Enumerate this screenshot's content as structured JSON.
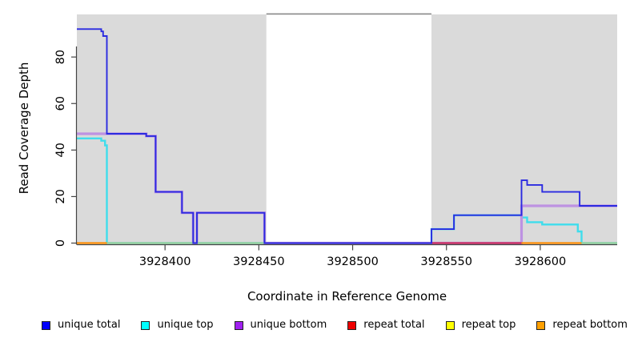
{
  "figure": {
    "x_axis_title": "Coordinate in Reference Genome",
    "y_axis_title": "Read Coverage Depth"
  },
  "legend": {
    "items": [
      {
        "name": "unique-total",
        "label": "unique total",
        "color": "#0000FF"
      },
      {
        "name": "unique-top",
        "label": "unique top",
        "color": "#00FFFF"
      },
      {
        "name": "unique-bottom",
        "label": "unique bottom",
        "color": "#A020F0"
      },
      {
        "name": "repeat-total",
        "label": "repeat total",
        "color": "#EE0000"
      },
      {
        "name": "repeat-top",
        "label": "repeat top",
        "color": "#FFFF00"
      },
      {
        "name": "repeat-bottom",
        "label": "repeat bottom",
        "color": "#FFA000"
      }
    ]
  },
  "chart_data": {
    "type": "line",
    "title": "",
    "xlabel": "Coordinate in Reference Genome",
    "ylabel": "Read Coverage Depth",
    "xlim": [
      3928353,
      3928641
    ],
    "ylim": [
      0,
      99
    ],
    "x_ticks": [
      3928400,
      3928450,
      3928500,
      3928550,
      3928600
    ],
    "y_ticks": [
      0,
      20,
      40,
      60,
      80
    ],
    "grid": false,
    "legend_position": "bottom",
    "background_color": "#FFFFFF",
    "shaded_regions": [
      {
        "name": "masked-region-left",
        "x0": 3928353,
        "x1": 3928454,
        "color": "#DADADA"
      },
      {
        "name": "masked-region-right",
        "x0": 3928542,
        "x1": 3928641,
        "color": "#DADADA"
      }
    ],
    "gap_marker": {
      "name": "gap-top-border",
      "x0": 3928454,
      "x1": 3928542,
      "y": 98.5,
      "color": "#888888"
    },
    "series": [
      {
        "name": "unique top",
        "color": "#3FDDEC",
        "width": 2.4,
        "points": [
          [
            3928353,
            45
          ],
          [
            3928366,
            45
          ],
          [
            3928366,
            44
          ],
          [
            3928368,
            44
          ],
          [
            3928368,
            42
          ],
          [
            3928369,
            42
          ],
          [
            3928369,
            0
          ],
          [
            3928542,
            0
          ],
          [
            3928542,
            6
          ],
          [
            3928554,
            6
          ],
          [
            3928554,
            12
          ],
          [
            3928590,
            12
          ],
          [
            3928590,
            11
          ],
          [
            3928593,
            11
          ],
          [
            3928593,
            9
          ],
          [
            3928601,
            9
          ],
          [
            3928601,
            8
          ],
          [
            3928620,
            8
          ],
          [
            3928620,
            5
          ],
          [
            3928622,
            5
          ],
          [
            3928622,
            0
          ],
          [
            3928641,
            0
          ]
        ]
      },
      {
        "name": "unique bottom",
        "color": "#BD92E2",
        "width": 3.2,
        "points": [
          [
            3928353,
            47
          ],
          [
            3928390,
            47
          ],
          [
            3928390,
            46
          ],
          [
            3928395,
            46
          ],
          [
            3928395,
            22
          ],
          [
            3928409,
            22
          ],
          [
            3928409,
            13
          ],
          [
            3928415,
            13
          ],
          [
            3928415,
            0
          ],
          [
            3928417,
            0
          ],
          [
            3928417,
            13
          ],
          [
            3928453,
            13
          ],
          [
            3928453,
            0
          ],
          [
            3928590,
            0
          ],
          [
            3928590,
            16
          ],
          [
            3928641,
            16
          ]
        ]
      },
      {
        "name": "unique total",
        "color": "#2B2BE0",
        "width": 1.9,
        "points": [
          [
            3928353,
            92
          ],
          [
            3928366,
            92
          ],
          [
            3928366,
            91
          ],
          [
            3928367,
            91
          ],
          [
            3928367,
            89
          ],
          [
            3928369,
            89
          ],
          [
            3928369,
            47
          ],
          [
            3928390,
            47
          ],
          [
            3928390,
            46
          ],
          [
            3928395,
            46
          ],
          [
            3928395,
            22
          ],
          [
            3928409,
            22
          ],
          [
            3928409,
            13
          ],
          [
            3928415,
            13
          ],
          [
            3928415,
            0
          ],
          [
            3928417,
            0
          ],
          [
            3928417,
            13
          ],
          [
            3928453,
            13
          ],
          [
            3928453,
            0
          ],
          [
            3928542,
            0
          ],
          [
            3928542,
            6
          ],
          [
            3928554,
            6
          ],
          [
            3928554,
            12
          ],
          [
            3928590,
            12
          ],
          [
            3928590,
            27
          ],
          [
            3928593,
            27
          ],
          [
            3928593,
            25
          ],
          [
            3928601,
            25
          ],
          [
            3928601,
            22
          ],
          [
            3928621,
            22
          ],
          [
            3928621,
            16
          ],
          [
            3928641,
            16
          ]
        ]
      }
    ],
    "baseline_segments": [
      {
        "name": "repeat total",
        "color": "#CE2D5C",
        "y": 0,
        "ranges": [
          [
            3928542,
            3928590
          ]
        ]
      },
      {
        "name": "repeat top",
        "color": "#FFFF00",
        "y": 0,
        "ranges": []
      },
      {
        "name": "repeat bottom",
        "color": "#FF8C00",
        "y": 0,
        "ranges": [
          [
            3928353,
            3928369
          ],
          [
            3928590,
            3928622
          ]
        ]
      },
      {
        "name": "zero-coverage-green",
        "color": "#99D099",
        "y": 0,
        "ranges": [
          [
            3928369,
            3928453
          ],
          [
            3928622,
            3928641
          ]
        ]
      }
    ]
  }
}
